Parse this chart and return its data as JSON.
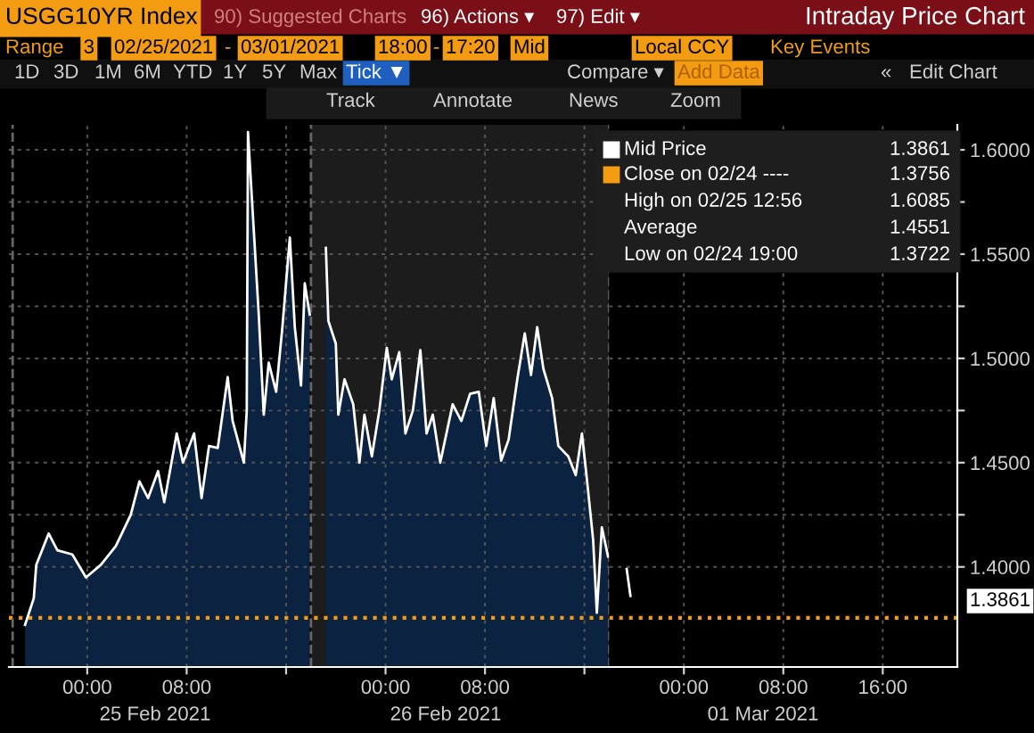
{
  "chart_data": [
    {
      "type": "area",
      "title": "USGG10YR Index",
      "annotations": [
        "90) Suggested Charts",
        "96) Actions ▾",
        "97) Edit ▾",
        "Range",
        "3",
        "02/25/2021",
        "-",
        "03/01/2021",
        "18:00",
        "-",
        "17:20",
        "Mid",
        "Local CCY",
        "Key Events",
        "1D",
        "3D",
        "1M",
        "6M",
        "YTD",
        "1Y",
        "5Y",
        "Max",
        "Tick ▼",
        "Compare ▾",
        "Add Data",
        "«",
        "Edit Chart",
        "Track",
        "Annotate",
        "News",
        "Zoom",
        "Mid Price",
        "1.3861",
        "Close on 02/24 ----",
        "1.3756",
        "High on 02/25 12:56",
        "1.6085",
        "Average",
        "1.4551",
        "Low on 02/24 19:00",
        "1.3722",
        "1.3861",
        "25 Feb 2021",
        "26 Feb 2021",
        "01 Mar 2021"
      ],
      "series": [
        {
          "color": "#ffffff",
          "x": [
            "2021-02-24T19:00",
            "2021-02-24T19:42",
            "2021-02-24T19:54",
            "2021-02-24T20:54",
            "2021-02-24T21:36",
            "2021-02-24T22:48",
            "2021-02-24T23:54",
            "2021-02-25T01:06",
            "2021-02-25T02:18",
            "2021-02-25T03:30",
            "2021-02-25T04:12",
            "2021-02-25T04:54",
            "2021-02-25T05:42",
            "2021-02-25T06:12",
            "2021-02-25T07:12",
            "2021-02-25T07:42",
            "2021-02-25T08:36",
            "2021-02-25T09:12",
            "2021-02-25T09:48",
            "2021-02-25T10:30",
            "2021-02-25T11:18",
            "2021-02-25T11:42",
            "2021-02-25T12:36",
            "2021-02-25T12:50",
            "2021-02-25T12:56",
            "2021-02-25T13:48",
            "2021-02-25T14:12",
            "2021-02-25T14:36",
            "2021-02-25T15:12",
            "2021-02-25T15:42",
            "2021-02-25T16:18",
            "2021-02-25T16:42",
            "2021-02-25T17:12",
            "2021-02-25T17:30",
            "2021-02-25T17:54",
            "2021-02-25T18:24",
            "2021-02-25T19:12",
            "2021-02-25T19:24",
            "2021-02-25T20:00",
            "2021-02-25T20:12",
            "2021-02-25T20:42",
            "2021-02-25T21:24",
            "2021-02-25T21:54",
            "2021-02-25T22:18",
            "2021-02-25T22:54",
            "2021-02-25T23:30",
            "2021-02-26T00:06",
            "2021-02-26T00:30",
            "2021-02-26T01:06",
            "2021-02-26T01:36",
            "2021-02-26T02:12",
            "2021-02-26T02:48",
            "2021-02-26T03:18",
            "2021-02-26T03:48",
            "2021-02-26T04:24",
            "2021-02-26T05:24",
            "2021-02-26T06:06",
            "2021-02-26T06:48",
            "2021-02-26T07:30",
            "2021-02-26T08:06",
            "2021-02-26T08:42",
            "2021-02-26T09:18",
            "2021-02-26T09:54",
            "2021-02-26T10:36",
            "2021-02-26T11:12",
            "2021-02-26T11:42",
            "2021-02-26T12:12",
            "2021-02-26T12:42",
            "2021-02-26T13:24",
            "2021-02-26T13:54",
            "2021-02-26T14:42",
            "2021-02-26T15:18",
            "2021-02-26T15:48",
            "2021-02-26T16:12",
            "2021-02-26T16:42",
            "2021-02-26T17:00",
            "2021-02-26T17:24",
            "2021-02-26T17:54"
          ],
          "values": [
            1.3722,
            1.385,
            1.401,
            1.416,
            1.408,
            1.406,
            1.395,
            1.401,
            1.41,
            1.425,
            1.441,
            1.433,
            1.446,
            1.431,
            1.464,
            1.45,
            1.464,
            1.433,
            1.458,
            1.457,
            1.491,
            1.47,
            1.45,
            1.475,
            1.6085,
            1.521,
            1.473,
            1.498,
            1.484,
            1.515,
            1.558,
            1.515,
            1.487,
            1.536,
            1.521,
            null,
            1.553,
            1.518,
            1.507,
            1.473,
            1.49,
            1.478,
            1.45,
            1.473,
            1.453,
            1.475,
            1.505,
            1.49,
            1.503,
            1.464,
            1.475,
            1.504,
            1.464,
            1.473,
            1.45,
            1.478,
            1.47,
            1.483,
            1.484,
            1.458,
            1.481,
            1.451,
            1.461,
            1.49,
            1.512,
            1.492,
            1.515,
            1.495,
            1.481,
            1.458,
            1.453,
            1.444,
            1.464,
            1.442,
            1.413,
            1.378,
            1.419,
            1.405
          ]
        }
      ],
      "xlim": [
        "2021-02-24T17:42",
        "2021-02-26T18:00"
      ],
      "xticks": [
        {
          "value": "2021-02-25T00:00",
          "label": "00:00"
        },
        {
          "value": "2021-02-25T08:00",
          "label": "08:00"
        },
        {
          "value": "2021-02-25T16:00",
          "label": null
        },
        {
          "value": "2021-02-26T00:00",
          "label": "00:00"
        },
        {
          "value": "2021-02-26T08:00",
          "label": "08:00"
        },
        {
          "value": "2021-02-26T16:00",
          "label": null
        }
      ],
      "ylim": [
        1.352,
        1.612
      ],
      "yticks": [
        1.4,
        1.425,
        1.45,
        1.475,
        1.5,
        1.525,
        1.55,
        1.575,
        1.6
      ],
      "tick_labels": "x",
      "ref_lines": [
        {
          "axis": "y",
          "value": 1.3756,
          "color": "#f39c12",
          "line_style": "dotted"
        },
        {
          "axis": "x",
          "value": "2021-02-24T18:00",
          "color": "#666666",
          "line_style": "dashed"
        },
        {
          "axis": "x",
          "value": "2021-02-25T18:00",
          "color": "#666666",
          "line_style": "dashed"
        },
        {
          "axis": "x",
          "value": "2021-02-26T18:00",
          "color": "#666666",
          "line_style": "dashed"
        }
      ],
      "bands": [
        {
          "axis": "x",
          "from": "2021-02-25T18:00",
          "to": "2021-02-26T18:00",
          "color": "#1c1c1c"
        }
      ],
      "grid": true
    },
    {
      "type": "line",
      "annotations": [
        "Intraday Price Chart"
      ],
      "series": [
        {
          "color": "#ffffff",
          "x": [
            "2021-02-28T19:24",
            "2021-02-28T19:42"
          ],
          "values": [
            1.399,
            1.3861
          ]
        }
      ],
      "xlim": [
        "2021-02-28T18:00",
        "2021-03-01T22:00"
      ],
      "xticks": [
        {
          "value": "2021-03-01T00:00",
          "label": "00:00"
        },
        {
          "value": "2021-03-01T08:00",
          "label": "08:00"
        },
        {
          "value": "2021-03-01T16:00",
          "label": "16:00"
        }
      ],
      "ylim": [
        1.352,
        1.612
      ],
      "yticks": [
        {
          "value": 1.4,
          "label": "1.4000"
        },
        {
          "value": 1.425,
          "label": null
        },
        {
          "value": 1.45,
          "label": "1.4500"
        },
        {
          "value": 1.475,
          "label": null
        },
        {
          "value": 1.5,
          "label": "1.5000"
        },
        {
          "value": 1.525,
          "label": null
        },
        {
          "value": 1.55,
          "label": "1.5500"
        },
        {
          "value": 1.575,
          "label": null
        },
        {
          "value": 1.6,
          "label": "1.6000"
        }
      ],
      "ref_lines": [
        {
          "axis": "y",
          "value": 1.3756,
          "color": "#f39c12",
          "line_style": "dotted"
        }
      ],
      "grid": true
    }
  ]
}
